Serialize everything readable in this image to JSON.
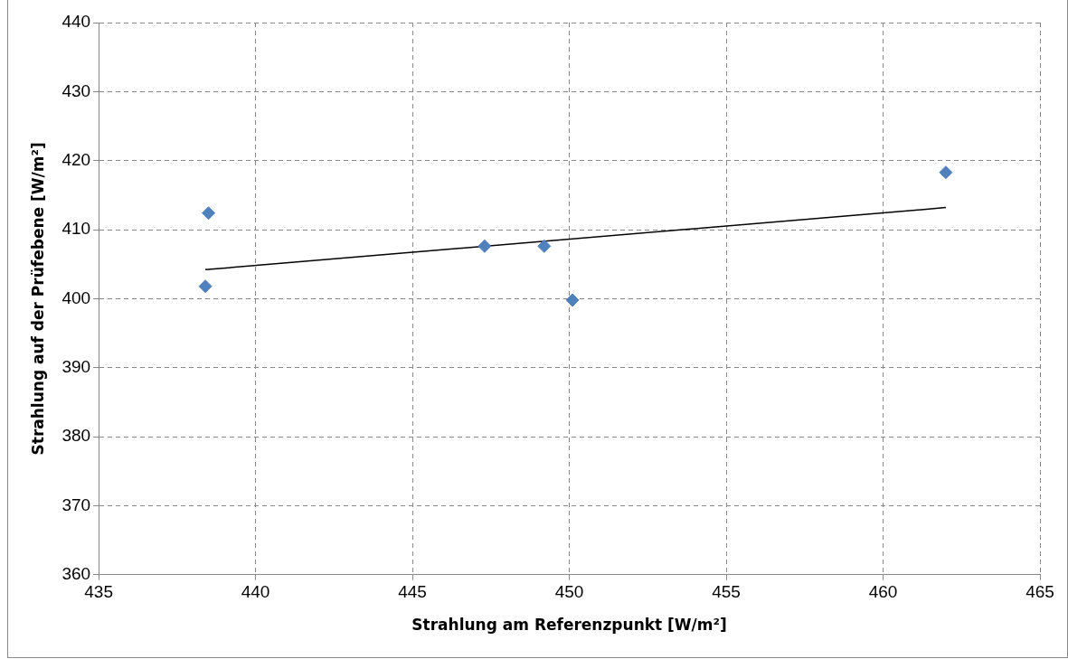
{
  "chart_data": {
    "type": "scatter",
    "xlabel": "Strahlung am Referenzpunkt [W/m²]",
    "ylabel": "Strahlung auf der Prüfebene [W/m²]",
    "xlim": [
      435,
      465
    ],
    "xticks": [
      435,
      440,
      445,
      450,
      455,
      460,
      465
    ],
    "ylim": [
      360,
      440
    ],
    "yticks": [
      360,
      370,
      380,
      390,
      400,
      410,
      420,
      430,
      440
    ],
    "grid": true,
    "legend": false,
    "marker": "diamond",
    "series": [
      {
        "color": "#4f81bd",
        "x": [
          438.5,
          438.4,
          447.3,
          449.2,
          450.1,
          462.0
        ],
        "values": [
          412.4,
          401.8,
          407.6,
          407.6,
          399.8,
          418.3
        ]
      },
      {
        "type": "line",
        "color": "#000000",
        "marker": "none",
        "x": [
          438.4,
          462.0
        ],
        "values": [
          404.2,
          413.2
        ]
      }
    ]
  }
}
